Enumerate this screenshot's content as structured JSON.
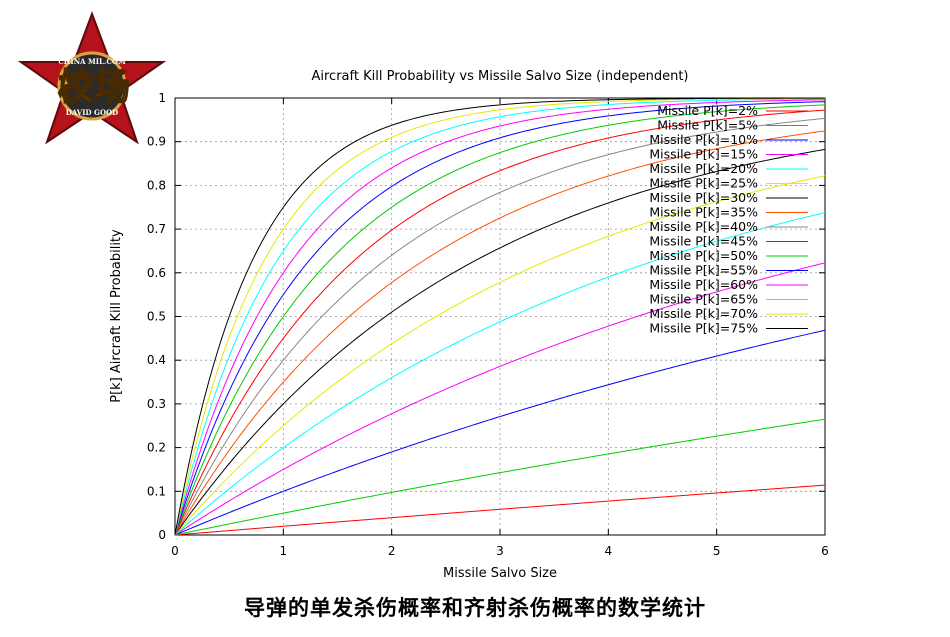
{
  "logo": {
    "text": "校场",
    "ring_top": "CHINA MIL.COM",
    "ring_bottom": "DAVID GOOD"
  },
  "caption": "导弹的单发杀伤概率和齐射杀伤概率的数学统计",
  "chart_data": {
    "type": "line",
    "title": "Aircraft Kill Probability vs Missile Salvo Size (independent)",
    "xlabel": "Missile Salvo Size",
    "ylabel": "P[k] Aircraft Kill Probability",
    "xlim": [
      0,
      6
    ],
    "ylim": [
      0,
      1
    ],
    "x_ticks": [
      "0",
      "1",
      "2",
      "3",
      "4",
      "5",
      "6"
    ],
    "y_ticks": [
      "0",
      "0.1",
      "0.2",
      "0.3",
      "0.4",
      "0.5",
      "0.6",
      "0.7",
      "0.8",
      "0.9",
      "1"
    ],
    "grid": true,
    "legend_position": "top-right",
    "formula": "1-(1-Pk)^x",
    "series": [
      {
        "name": "Missile P[k]=2%",
        "pk": 0.02,
        "color": "#ff0000"
      },
      {
        "name": "Missile P[k]=5%",
        "pk": 0.05,
        "color": "#00cc00"
      },
      {
        "name": "Missile P[k]=10%",
        "pk": 0.1,
        "color": "#0000ff"
      },
      {
        "name": "Missile P[k]=15%",
        "pk": 0.15,
        "color": "#ff00ff"
      },
      {
        "name": "Missile P[k]=20%",
        "pk": 0.2,
        "color": "#00ffff"
      },
      {
        "name": "Missile P[k]=25%",
        "pk": 0.25,
        "color": "#e8e800"
      },
      {
        "name": "Missile P[k]=30%",
        "pk": 0.3,
        "color": "#000000"
      },
      {
        "name": "Missile P[k]=35%",
        "pk": 0.35,
        "color": "#ff5000"
      },
      {
        "name": "Missile P[k]=40%",
        "pk": 0.4,
        "color": "#888888"
      },
      {
        "name": "Missile P[k]=45%",
        "pk": 0.45,
        "color": "#ff0000"
      },
      {
        "name": "Missile P[k]=50%",
        "pk": 0.5,
        "color": "#00cc00"
      },
      {
        "name": "Missile P[k]=55%",
        "pk": 0.55,
        "color": "#0000ff"
      },
      {
        "name": "Missile P[k]=60%",
        "pk": 0.6,
        "color": "#ff00ff"
      },
      {
        "name": "Missile P[k]=65%",
        "pk": 0.65,
        "color": "#00ffff"
      },
      {
        "name": "Missile P[k]=70%",
        "pk": 0.7,
        "color": "#e8e800"
      },
      {
        "name": "Missile P[k]=75%",
        "pk": 0.75,
        "color": "#000000"
      }
    ]
  }
}
